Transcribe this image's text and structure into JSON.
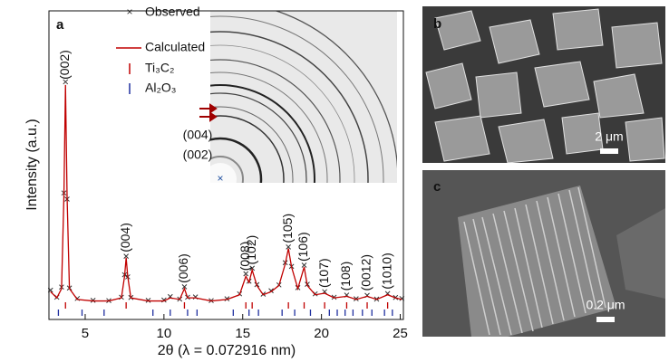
{
  "chart_data": {
    "type": "line",
    "panel_label": "a",
    "xlabel": "2θ (λ = 0.072916 nm)",
    "ylabel": "Intensity (a.u.)",
    "xlim": [
      2.7,
      25.2
    ],
    "xticks": [
      5,
      10,
      15,
      20,
      25
    ],
    "ylim": [
      0,
      100
    ],
    "x": [
      2.8,
      3.2,
      3.5,
      3.65,
      3.75,
      3.85,
      4.0,
      4.5,
      5.5,
      6.5,
      7.3,
      7.5,
      7.6,
      7.7,
      7.9,
      9,
      10,
      10.4,
      11,
      11.3,
      11.5,
      12,
      13,
      14,
      14.8,
      15.2,
      15.4,
      15.6,
      15.9,
      16.3,
      16.8,
      17.3,
      17.7,
      17.9,
      18.1,
      18.5,
      18.9,
      19.1,
      19.6,
      20.2,
      20.8,
      21.6,
      22.2,
      22.9,
      23.5,
      24.2,
      24.7,
      25.1
    ],
    "series": [
      {
        "name": "Observed",
        "color": "#333333",
        "marker": "x",
        "values": [
          9.5,
          7.2,
          10.5,
          41,
          77,
          39,
          10.2,
          6.8,
          6.2,
          6.1,
          7.2,
          14.5,
          20.5,
          13.8,
          7.1,
          6.2,
          6.3,
          7.4,
          6.6,
          10.6,
          7.2,
          7.3,
          6.1,
          6.7,
          8.3,
          14.8,
          12.4,
          16.6,
          11.3,
          8.2,
          9.3,
          11.2,
          18.4,
          23.5,
          17.2,
          10.3,
          17.6,
          11.4,
          8.3,
          9,
          7.2,
          7.9,
          6.7,
          7.8,
          6.6,
          8.4,
          7.1,
          6.8
        ]
      },
      {
        "name": "Calculated",
        "color": "#c00000",
        "values": [
          9,
          7,
          10,
          40,
          76,
          40,
          10,
          6.5,
          6,
          6,
          7,
          14,
          20,
          14,
          7,
          6,
          6,
          7,
          6.5,
          10,
          7,
          7,
          6,
          6.5,
          8,
          14,
          12,
          16,
          11,
          8,
          9,
          11,
          18,
          23,
          17,
          10,
          17,
          11,
          8,
          8.5,
          7,
          7.5,
          6.5,
          7.5,
          6.5,
          8,
          7,
          6.5
        ]
      }
    ],
    "reflections": [
      {
        "name": "Ti₃C₂",
        "color": "#c00000",
        "x": [
          3.75,
          7.6,
          11.3,
          15.2,
          15.6,
          17.9,
          18.9,
          20.2,
          21.6,
          22.9,
          24.2
        ]
      },
      {
        "name": "Al₂O₃",
        "color": "#1f2f9f",
        "x": [
          3.3,
          4.8,
          6.2,
          9.3,
          10.4,
          11.5,
          12.1,
          14.4,
          15.4,
          16.0,
          17.5,
          18.3,
          19.3,
          20.5,
          21.0,
          21.5,
          22.0,
          22.6,
          23.2,
          24.0,
          24.5
        ]
      }
    ],
    "annotations": [
      {
        "text": "(002)",
        "x": 3.75
      },
      {
        "text": "(004)",
        "x": 7.6
      },
      {
        "text": "(006)",
        "x": 11.3
      },
      {
        "text": "(008)",
        "x": 15.2
      },
      {
        "text": "(102)",
        "x": 15.6
      },
      {
        "text": "(105)",
        "x": 17.9
      },
      {
        "text": "(106)",
        "x": 18.9
      },
      {
        "text": "(107)",
        "x": 20.2
      },
      {
        "text": "(108)",
        "x": 21.6
      },
      {
        "text": "(0012)",
        "x": 22.9
      },
      {
        "text": "(1010)",
        "x": 24.2
      }
    ]
  },
  "inset": {
    "labels": [
      "(004)",
      "(002)"
    ]
  },
  "panels": [
    {
      "label": "b",
      "scale_bar": "2 μm"
    },
    {
      "label": "c",
      "scale_bar": "0.2 μm"
    }
  ]
}
